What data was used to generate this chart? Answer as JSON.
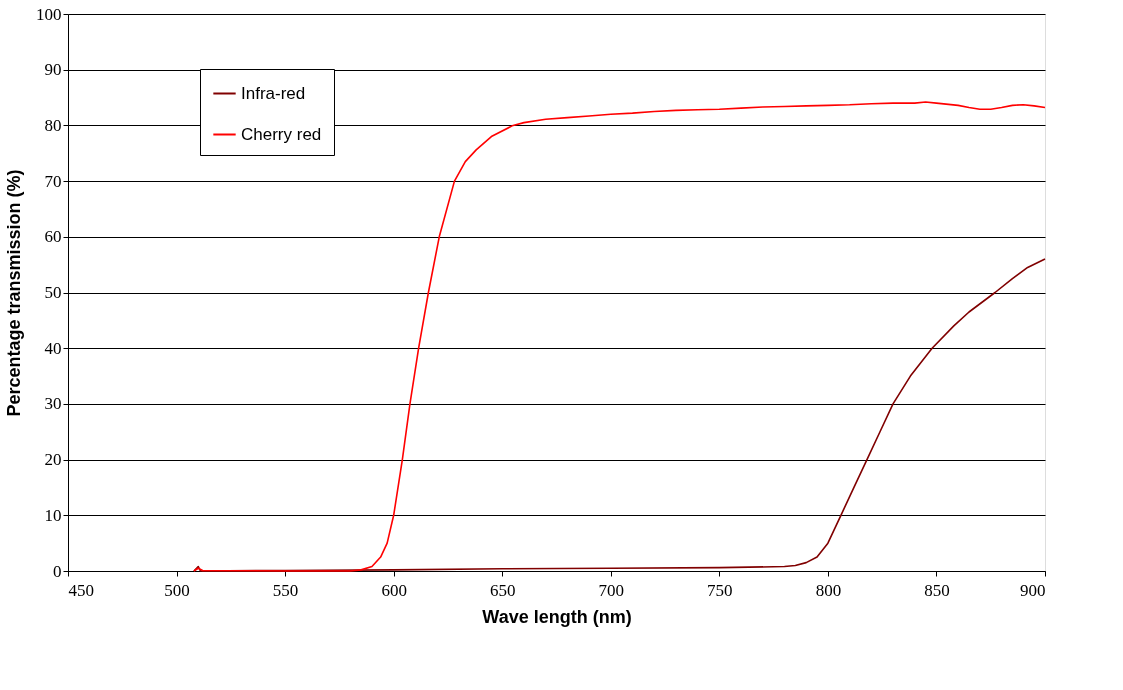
{
  "chart_data": {
    "type": "line",
    "xlabel": "Wave length (nm)",
    "ylabel": "Percentage transmission (%)",
    "xlim": [
      450,
      900
    ],
    "xticks": [
      450,
      500,
      550,
      600,
      650,
      700,
      750,
      800,
      850,
      900
    ],
    "ylim": [
      0,
      100
    ],
    "yticks": [
      0,
      10,
      20,
      30,
      40,
      50,
      60,
      70,
      80,
      90,
      100
    ],
    "grid": "y",
    "legend": "top left",
    "line_style": "solid",
    "marker": "none",
    "series": [
      {
        "name": "Infra-red",
        "color": "#800000",
        "x": [
          508,
          510,
          511,
          550,
          600,
          650,
          700,
          750,
          780,
          785,
          790,
          795,
          800,
          806,
          812,
          818,
          824,
          830,
          838,
          848,
          858,
          865,
          877,
          885,
          892,
          900
        ],
        "values": [
          0,
          0.8,
          0,
          0.1,
          0.2,
          0.4,
          0.5,
          0.6,
          0.8,
          1.0,
          1.5,
          2.5,
          5,
          10,
          15,
          20,
          25,
          30,
          35,
          40,
          44,
          46.5,
          50,
          52.5,
          54.5,
          56
        ]
      },
      {
        "name": "Cherry red",
        "color": "#ff0000",
        "x": [
          508,
          510,
          512,
          550,
          580,
          585,
          590,
          594,
          597,
          600,
          604,
          607.5,
          611.5,
          616,
          621,
          628,
          633,
          638,
          645,
          655,
          660,
          670,
          680,
          690,
          700,
          710,
          720,
          730,
          740,
          750,
          760,
          770,
          780,
          790,
          800,
          810,
          820,
          830,
          840,
          845,
          850,
          860,
          865,
          870,
          875,
          880,
          885,
          890,
          895,
          900
        ],
        "values": [
          0,
          0.5,
          0.1,
          0,
          0,
          0.2,
          0.8,
          2.5,
          5,
          10,
          20,
          30,
          40,
          50,
          60,
          70,
          73.5,
          75.6,
          78,
          80,
          80.5,
          81.1,
          81.4,
          81.7,
          82,
          82.2,
          82.5,
          82.7,
          82.8,
          82.9,
          83.1,
          83.3,
          83.4,
          83.5,
          83.6,
          83.7,
          83.9,
          84,
          84,
          84.2,
          84,
          83.6,
          83.2,
          82.9,
          82.9,
          83.2,
          83.6,
          83.7,
          83.5,
          83.2
        ]
      }
    ]
  }
}
